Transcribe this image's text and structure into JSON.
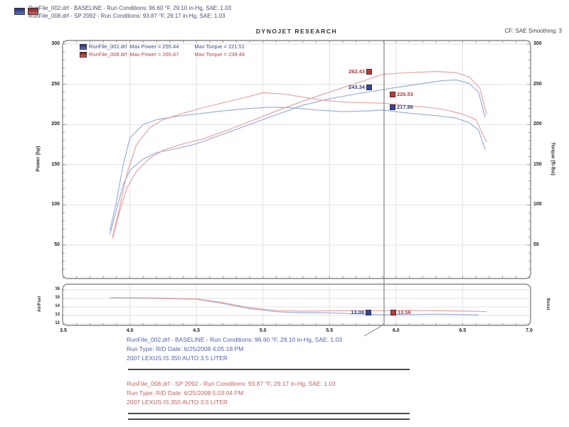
{
  "header": {
    "runs": [
      {
        "line": "RunFile_002.drf - BASELINE  -  Run Conditions: 96.60 °F, 29.10 in-Hg, SAE: 1.03"
      },
      {
        "line": "RunFile_008.drf - SP 2092  -  Run Conditions: 93.87 °F, 29.17 in-Hg, SAE: 1.03"
      }
    ],
    "brand": "DYNOJET RESEARCH",
    "correction": "CF: SAE  Smoothing: 3"
  },
  "legend": {
    "rows": [
      {
        "file": "RunFile_002.drf",
        "max_power": "Max Power = 255.44",
        "max_torque": "Max Torque = 221.51"
      },
      {
        "file": "RunFile_008.drf",
        "max_power": "Max Power = 265.87",
        "max_torque": "Max Torque = 239.48"
      }
    ]
  },
  "cursor_labels": {
    "power_red": "262.43",
    "power_blue": "243.34",
    "torque_red": "226.53",
    "torque_blue": "217.86",
    "af_blue": "13.08",
    "af_red": "13.56"
  },
  "footer": {
    "baseline": {
      "line1": "RunFile_002.drf - BASELINE  -  Run Conditions: 96.60 °F, 29.10 in-Hg, SAE: 1.03",
      "line2": "Run Type: R/D  Date: 6/25/2008 4:05:18 PM",
      "line3": "2007 LEXUS IS 350 AUTO 3.5 LITER"
    },
    "modified": {
      "line1": "RunFile_008.drf - SP 2092  -  Run Conditions: 93.87 °F, 29.17 in-Hg, SAE: 1.03",
      "line2": "Run Type: R/D  Date: 6/25/2008 5:03:04 PM",
      "line3": "2007 LEXUS IS 350 AUTO 3.5 LITER"
    }
  },
  "chart_data": {
    "type": "line",
    "x_label": "",
    "x_range": [
      3.5,
      7.0
    ],
    "x_ticks": [
      3.5,
      4.0,
      4.5,
      5.0,
      5.5,
      6.0,
      6.5,
      7.0
    ],
    "cursor_rpm": 5.91,
    "colors": {
      "baseline_curve": "#9bb0d8",
      "modified_curve": "#e8a4a4",
      "grid": "#e2e2e2",
      "cursor": "#666666",
      "panel_border": "#8a8a8a"
    },
    "main_panel": {
      "left_axis_label": "Power (hp)",
      "right_axis_label": "Torque (ft-lbs)",
      "y_ticks": [
        50,
        100,
        150,
        200,
        250,
        300
      ],
      "y_range": [
        8,
        304
      ],
      "series": [
        {
          "name": "RunFile_002.drf Power (hp)",
          "color": "baseline_curve",
          "points": [
            [
              3.85,
              63
            ],
            [
              3.9,
              95
            ],
            [
              3.95,
              125
            ],
            [
              4.0,
              143
            ],
            [
              4.1,
              157
            ],
            [
              4.2,
              165
            ],
            [
              4.35,
              170
            ],
            [
              4.5,
              176
            ],
            [
              4.7,
              188
            ],
            [
              4.9,
              200
            ],
            [
              5.1,
              212
            ],
            [
              5.3,
              224
            ],
            [
              5.5,
              232
            ],
            [
              5.7,
              238
            ],
            [
              5.9,
              243.3
            ],
            [
              6.0,
              246
            ],
            [
              6.2,
              251
            ],
            [
              6.35,
              254.5
            ],
            [
              6.45,
              255.4
            ],
            [
              6.55,
              251
            ],
            [
              6.62,
              240
            ],
            [
              6.67,
              208
            ]
          ]
        },
        {
          "name": "RunFile_008.drf Power (hp)",
          "color": "modified_curve",
          "points": [
            [
              3.87,
              58
            ],
            [
              3.92,
              90
            ],
            [
              3.98,
              122
            ],
            [
              4.05,
              142
            ],
            [
              4.15,
              158
            ],
            [
              4.25,
              168
            ],
            [
              4.4,
              176
            ],
            [
              4.55,
              182
            ],
            [
              4.75,
              194
            ],
            [
              4.95,
              207
            ],
            [
              5.15,
              220
            ],
            [
              5.35,
              232
            ],
            [
              5.55,
              243
            ],
            [
              5.75,
              254
            ],
            [
              5.9,
              262.4
            ],
            [
              6.0,
              263.5
            ],
            [
              6.15,
              264.8
            ],
            [
              6.3,
              265.9
            ],
            [
              6.45,
              264.5
            ],
            [
              6.55,
              259
            ],
            [
              6.63,
              245
            ],
            [
              6.68,
              212
            ]
          ]
        },
        {
          "name": "RunFile_002.drf Torque (ft-lbs)",
          "color": "baseline_curve",
          "points": [
            [
              3.85,
              68
            ],
            [
              3.9,
              105
            ],
            [
              3.95,
              150
            ],
            [
              4.0,
              183
            ],
            [
              4.1,
              200
            ],
            [
              4.2,
              206
            ],
            [
              4.35,
              210
            ],
            [
              4.5,
              213
            ],
            [
              4.7,
              217
            ],
            [
              4.9,
              220
            ],
            [
              5.05,
              221.5
            ],
            [
              5.2,
              221
            ],
            [
              5.4,
              218
            ],
            [
              5.6,
              216
            ],
            [
              5.8,
              217
            ],
            [
              5.9,
              217.9
            ],
            [
              6.1,
              214
            ],
            [
              6.3,
              211
            ],
            [
              6.45,
              208
            ],
            [
              6.55,
              202
            ],
            [
              6.62,
              193
            ],
            [
              6.67,
              168
            ]
          ]
        },
        {
          "name": "RunFile_008.drf Torque (ft-lbs)",
          "color": "modified_curve",
          "points": [
            [
              3.87,
              60
            ],
            [
              3.92,
              95
            ],
            [
              3.98,
              140
            ],
            [
              4.05,
              175
            ],
            [
              4.15,
              196
            ],
            [
              4.25,
              206
            ],
            [
              4.4,
              214
            ],
            [
              4.55,
              221
            ],
            [
              4.75,
              229
            ],
            [
              4.9,
              235
            ],
            [
              5.0,
              239.5
            ],
            [
              5.15,
              238
            ],
            [
              5.3,
              234
            ],
            [
              5.45,
              230
            ],
            [
              5.6,
              228
            ],
            [
              5.75,
              227
            ],
            [
              5.9,
              226.5
            ],
            [
              6.05,
              224
            ],
            [
              6.2,
              222
            ],
            [
              6.35,
              219
            ],
            [
              6.5,
              213
            ],
            [
              6.6,
              206
            ],
            [
              6.68,
              178
            ]
          ]
        }
      ]
    },
    "af_panel": {
      "left_axis_label": "Air/Fuel",
      "right_axis_label": "Boost",
      "y_ticks": [
        16,
        15,
        14,
        13,
        12
      ],
      "y_range": [
        11.8,
        16.7
      ],
      "series": [
        {
          "name": "RunFile_002.drf Air/Fuel",
          "color": "baseline_curve",
          "points": [
            [
              3.85,
              15.05
            ],
            [
              4.2,
              15.0
            ],
            [
              4.5,
              14.9
            ],
            [
              4.7,
              14.4
            ],
            [
              4.9,
              13.8
            ],
            [
              5.1,
              13.45
            ],
            [
              5.3,
              13.3
            ],
            [
              5.5,
              13.3
            ],
            [
              5.7,
              13.2
            ],
            [
              5.9,
              13.08
            ],
            [
              6.1,
              13.1
            ],
            [
              6.3,
              13.15
            ],
            [
              6.5,
              13.1
            ],
            [
              6.62,
              13.05
            ]
          ]
        },
        {
          "name": "RunFile_008.drf Air/Fuel",
          "color": "modified_curve",
          "points": [
            [
              3.87,
              15.1
            ],
            [
              4.2,
              15.05
            ],
            [
              4.5,
              14.95
            ],
            [
              4.7,
              14.5
            ],
            [
              4.9,
              13.9
            ],
            [
              5.1,
              13.6
            ],
            [
              5.3,
              13.5
            ],
            [
              5.5,
              13.55
            ],
            [
              5.7,
              13.55
            ],
            [
              5.9,
              13.56
            ],
            [
              6.1,
              13.6
            ],
            [
              6.35,
              13.55
            ],
            [
              6.55,
              13.5
            ],
            [
              6.68,
              13.45
            ]
          ]
        }
      ]
    }
  }
}
